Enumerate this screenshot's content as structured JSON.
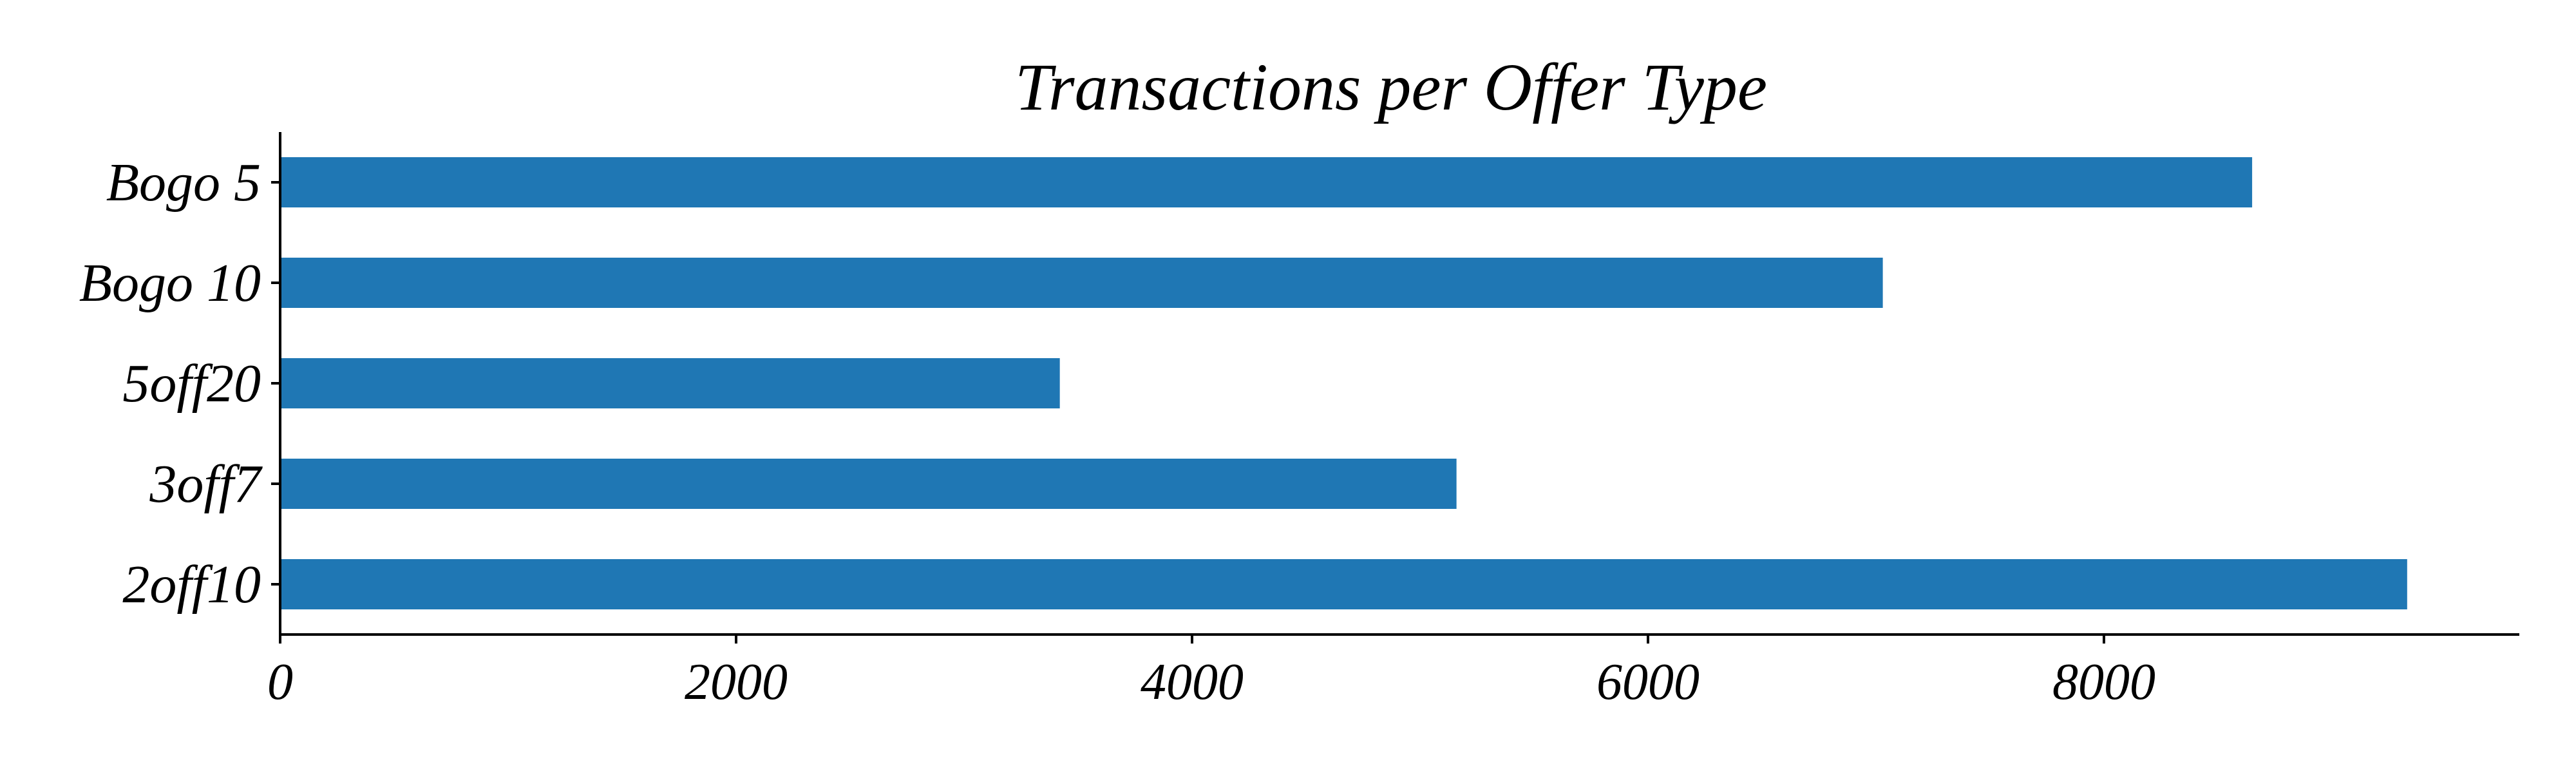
{
  "chart_data": {
    "type": "bar",
    "orientation": "horizontal",
    "title": "Transactions per Offer Type",
    "xlabel": "",
    "ylabel": "",
    "categories": [
      "Bogo 5",
      "Bogo 10",
      "5off20",
      "3off7",
      "2off10"
    ],
    "values": [
      8650,
      7030,
      3420,
      5160,
      9330
    ],
    "xlim": [
      0,
      9800
    ],
    "xticks": [
      0,
      2000,
      4000,
      6000,
      8000
    ],
    "xtick_labels": [
      "0",
      "2000",
      "4000",
      "6000",
      "8000"
    ],
    "grid": false,
    "legend": "none",
    "bar_color": "#1f77b4",
    "axis_color": "#000000"
  }
}
